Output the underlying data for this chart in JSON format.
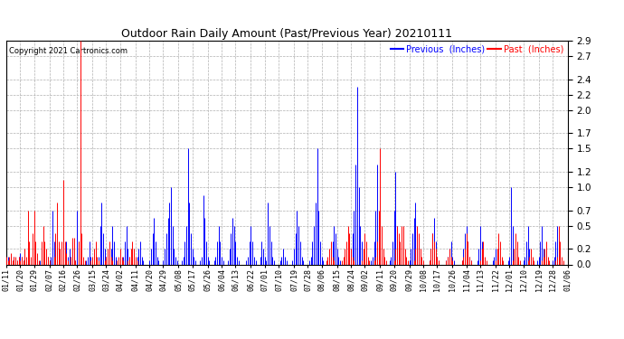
{
  "title": "Outdoor Rain Daily Amount (Past/Previous Year) 20210111",
  "copyright": "Copyright 2021 Cartronics.com",
  "legend_previous": "Previous  (Inches)",
  "legend_past": "Past  (Inches)",
  "previous_color": "blue",
  "past_color": "red",
  "background_color": "#ffffff",
  "grid_color": "#b0b0b0",
  "ylim": [
    0.0,
    2.9
  ],
  "yticks": [
    0.0,
    0.2,
    0.5,
    0.7,
    1.0,
    1.2,
    1.5,
    1.7,
    2.0,
    2.2,
    2.4,
    2.7,
    2.9
  ],
  "x_labels": [
    "01/11",
    "01/20",
    "01/29",
    "02/07",
    "02/16",
    "02/26",
    "03/15",
    "03/24",
    "04/02",
    "04/11",
    "04/20",
    "04/29",
    "05/08",
    "05/17",
    "05/26",
    "06/04",
    "06/13",
    "06/22",
    "07/01",
    "07/10",
    "07/19",
    "07/28",
    "08/06",
    "08/15",
    "08/24",
    "09/02",
    "09/11",
    "09/20",
    "09/29",
    "10/08",
    "10/17",
    "10/26",
    "11/04",
    "11/13",
    "11/22",
    "12/01",
    "12/10",
    "12/19",
    "12/28",
    "01/06"
  ],
  "n_points": 366,
  "previous_data": [
    0.0,
    0.1,
    0.05,
    0.1,
    0.05,
    0.1,
    0.0,
    0.05,
    0.1,
    0.15,
    0.1,
    0.05,
    0.1,
    0.0,
    0.05,
    0.1,
    0.0,
    0.05,
    0.1,
    0.05,
    0.0,
    0.0,
    0.05,
    0.2,
    0.1,
    0.05,
    0.0,
    0.1,
    0.05,
    0.1,
    0.7,
    0.3,
    0.1,
    0.05,
    0.0,
    0.0,
    0.0,
    0.05,
    0.1,
    0.3,
    0.1,
    0.2,
    0.1,
    0.3,
    0.1,
    0.05,
    0.7,
    0.3,
    0.1,
    0.05,
    0.0,
    0.0,
    0.05,
    0.1,
    0.3,
    0.1,
    0.05,
    0.0,
    0.0,
    0.05,
    0.1,
    0.5,
    0.8,
    0.4,
    0.2,
    0.1,
    0.05,
    0.0,
    0.2,
    0.5,
    0.3,
    0.1,
    0.05,
    0.0,
    0.0,
    0.05,
    0.1,
    0.3,
    0.5,
    0.2,
    0.1,
    0.05,
    0.0,
    0.0,
    0.05,
    0.1,
    0.2,
    0.3,
    0.1,
    0.05,
    0.0,
    0.0,
    0.0,
    0.05,
    0.2,
    0.4,
    0.6,
    0.3,
    0.1,
    0.05,
    0.0,
    0.0,
    0.05,
    0.2,
    0.4,
    0.6,
    0.8,
    1.0,
    0.5,
    0.2,
    0.1,
    0.05,
    0.0,
    0.0,
    0.05,
    0.1,
    0.3,
    0.5,
    1.5,
    0.8,
    0.4,
    0.2,
    0.1,
    0.05,
    0.0,
    0.0,
    0.05,
    0.1,
    0.9,
    0.6,
    0.3,
    0.1,
    0.05,
    0.0,
    0.0,
    0.05,
    0.1,
    0.3,
    0.5,
    0.3,
    0.1,
    0.05,
    0.0,
    0.0,
    0.05,
    0.2,
    0.4,
    0.6,
    0.5,
    0.3,
    0.1,
    0.05,
    0.0,
    0.0,
    0.0,
    0.0,
    0.05,
    0.1,
    0.3,
    0.5,
    0.3,
    0.1,
    0.05,
    0.0,
    0.0,
    0.1,
    0.3,
    0.2,
    0.1,
    0.05,
    0.8,
    0.5,
    0.3,
    0.1,
    0.05,
    0.0,
    0.0,
    0.0,
    0.05,
    0.1,
    0.2,
    0.1,
    0.05,
    0.0,
    0.0,
    0.0,
    0.05,
    0.2,
    0.4,
    0.7,
    0.5,
    0.3,
    0.1,
    0.05,
    0.0,
    0.0,
    0.0,
    0.05,
    0.1,
    0.3,
    0.5,
    0.8,
    1.5,
    0.7,
    0.3,
    0.1,
    0.05,
    0.0,
    0.0,
    0.0,
    0.05,
    0.1,
    0.3,
    0.5,
    0.4,
    0.2,
    0.1,
    0.05,
    0.0,
    0.0,
    0.0,
    0.0,
    0.05,
    0.1,
    0.2,
    0.4,
    0.7,
    1.3,
    2.3,
    1.0,
    0.5,
    0.3,
    0.1,
    0.05,
    0.0,
    0.0,
    0.0,
    0.05,
    0.1,
    0.3,
    0.7,
    1.3,
    0.5,
    0.2,
    0.1,
    0.05,
    0.0,
    0.0,
    0.0,
    0.05,
    0.1,
    0.3,
    0.7,
    1.2,
    0.5,
    0.2,
    0.1,
    0.05,
    0.0,
    0.0,
    0.0,
    0.0,
    0.05,
    0.2,
    0.4,
    0.6,
    0.8,
    0.4,
    0.2,
    0.1,
    0.05,
    0.0,
    0.0,
    0.0,
    0.0,
    0.05,
    0.2,
    0.4,
    0.6,
    0.3,
    0.1,
    0.05,
    0.0,
    0.0,
    0.0,
    0.0,
    0.05,
    0.1,
    0.2,
    0.3,
    0.1,
    0.05,
    0.0,
    0.0,
    0.0,
    0.0,
    0.05,
    0.2,
    0.4,
    0.5,
    0.3,
    0.1,
    0.05,
    0.0,
    0.0,
    0.0,
    0.05,
    0.2,
    0.5,
    0.3,
    0.1,
    0.05,
    0.0,
    0.0,
    0.0,
    0.0,
    0.05,
    0.1,
    0.2,
    0.1,
    0.05,
    0.0,
    0.0,
    0.0,
    0.0,
    0.0,
    0.05,
    0.1,
    1.0,
    0.5,
    0.2,
    0.1,
    0.05,
    0.0,
    0.0,
    0.0,
    0.05,
    0.1,
    0.3,
    0.5,
    0.2,
    0.1,
    0.05,
    0.0,
    0.0,
    0.05,
    0.1,
    0.3,
    0.5,
    0.2,
    0.1,
    0.05,
    0.0,
    0.0,
    0.0,
    0.05,
    0.1,
    0.3,
    0.5,
    0.2,
    0.1,
    0.05,
    0.0,
    0.0
  ],
  "past_data": [
    0.1,
    0.05,
    0.1,
    0.15,
    0.05,
    0.1,
    0.1,
    0.05,
    0.1,
    0.05,
    0.1,
    0.05,
    0.2,
    0.1,
    0.7,
    0.3,
    0.1,
    0.4,
    0.7,
    0.3,
    0.15,
    0.05,
    0.0,
    0.3,
    0.5,
    0.3,
    0.2,
    0.1,
    0.05,
    0.0,
    0.0,
    0.1,
    0.4,
    0.8,
    0.3,
    0.2,
    0.3,
    1.1,
    0.3,
    0.15,
    0.05,
    0.0,
    0.1,
    0.35,
    0.35,
    0.05,
    0.0,
    0.3,
    2.9,
    0.4,
    0.1,
    0.05,
    0.0,
    0.0,
    0.0,
    0.05,
    0.1,
    0.2,
    0.3,
    0.1,
    0.05,
    0.0,
    0.0,
    0.0,
    0.05,
    0.1,
    0.2,
    0.3,
    0.1,
    0.05,
    0.0,
    0.0,
    0.05,
    0.1,
    0.2,
    0.1,
    0.05,
    0.0,
    0.0,
    0.05,
    0.1,
    0.2,
    0.3,
    0.2,
    0.1,
    0.05,
    0.0,
    0.0,
    0.0,
    0.0,
    0.0,
    0.0,
    0.0,
    0.0,
    0.0,
    0.0,
    0.0,
    0.0,
    0.0,
    0.0,
    0.0,
    0.0,
    0.0,
    0.0,
    0.0,
    0.0,
    0.0,
    0.0,
    0.0,
    0.0,
    0.0,
    0.0,
    0.0,
    0.0,
    0.0,
    0.0,
    0.0,
    0.0,
    0.0,
    0.0,
    0.0,
    0.0,
    0.0,
    0.0,
    0.0,
    0.0,
    0.0,
    0.0,
    0.0,
    0.0,
    0.0,
    0.0,
    0.0,
    0.0,
    0.0,
    0.0,
    0.0,
    0.0,
    0.0,
    0.0,
    0.0,
    0.0,
    0.0,
    0.0,
    0.0,
    0.0,
    0.0,
    0.0,
    0.0,
    0.0,
    0.0,
    0.0,
    0.0,
    0.0,
    0.0,
    0.0,
    0.0,
    0.0,
    0.0,
    0.0,
    0.0,
    0.0,
    0.0,
    0.0,
    0.0,
    0.0,
    0.0,
    0.0,
    0.0,
    0.0,
    0.0,
    0.0,
    0.0,
    0.0,
    0.0,
    0.0,
    0.0,
    0.0,
    0.0,
    0.0,
    0.0,
    0.0,
    0.0,
    0.0,
    0.0,
    0.0,
    0.0,
    0.0,
    0.0,
    0.0,
    0.0,
    0.0,
    0.0,
    0.0,
    0.0,
    0.0,
    0.0,
    0.0,
    0.0,
    0.0,
    0.0,
    0.0,
    0.0,
    0.0,
    0.0,
    0.0,
    0.0,
    0.0,
    0.05,
    0.1,
    0.2,
    0.3,
    0.1,
    0.05,
    0.0,
    0.0,
    0.0,
    0.0,
    0.05,
    0.1,
    0.2,
    0.3,
    0.5,
    0.4,
    0.2,
    0.1,
    0.05,
    0.0,
    0.0,
    0.0,
    0.0,
    0.05,
    0.2,
    0.4,
    0.3,
    0.1,
    0.05,
    0.0,
    0.0,
    0.05,
    0.1,
    0.3,
    0.7,
    1.5,
    0.5,
    0.2,
    0.1,
    0.05,
    0.0,
    0.0,
    0.0,
    0.0,
    0.05,
    0.2,
    0.5,
    0.4,
    0.3,
    0.5,
    0.5,
    0.2,
    0.1,
    0.05,
    0.0,
    0.0,
    0.0,
    0.05,
    0.2,
    0.5,
    0.4,
    0.2,
    0.1,
    0.05,
    0.0,
    0.0,
    0.0,
    0.05,
    0.2,
    0.4,
    0.3,
    0.2,
    0.1,
    0.05,
    0.0,
    0.0,
    0.0,
    0.0,
    0.05,
    0.1,
    0.2,
    0.1,
    0.05,
    0.0,
    0.0,
    0.0,
    0.0,
    0.0,
    0.05,
    0.1,
    0.2,
    0.4,
    0.3,
    0.1,
    0.05,
    0.0,
    0.0,
    0.0,
    0.0,
    0.0,
    0.05,
    0.2,
    0.3,
    0.1,
    0.05,
    0.0,
    0.0,
    0.0,
    0.0,
    0.0,
    0.05,
    0.2,
    0.4,
    0.3,
    0.1,
    0.05,
    0.0,
    0.0,
    0.0,
    0.0,
    0.0,
    0.05,
    0.2,
    0.4,
    0.3,
    0.1,
    0.05,
    0.0,
    0.0,
    0.0,
    0.0,
    0.05,
    0.1,
    0.2,
    0.1,
    0.05,
    0.0,
    0.0,
    0.0,
    0.0,
    0.05,
    0.1,
    0.2,
    0.3,
    0.1,
    0.05,
    0.0,
    0.0,
    0.0,
    0.05,
    0.1,
    0.5,
    0.3,
    0.1,
    0.05,
    0.0
  ]
}
